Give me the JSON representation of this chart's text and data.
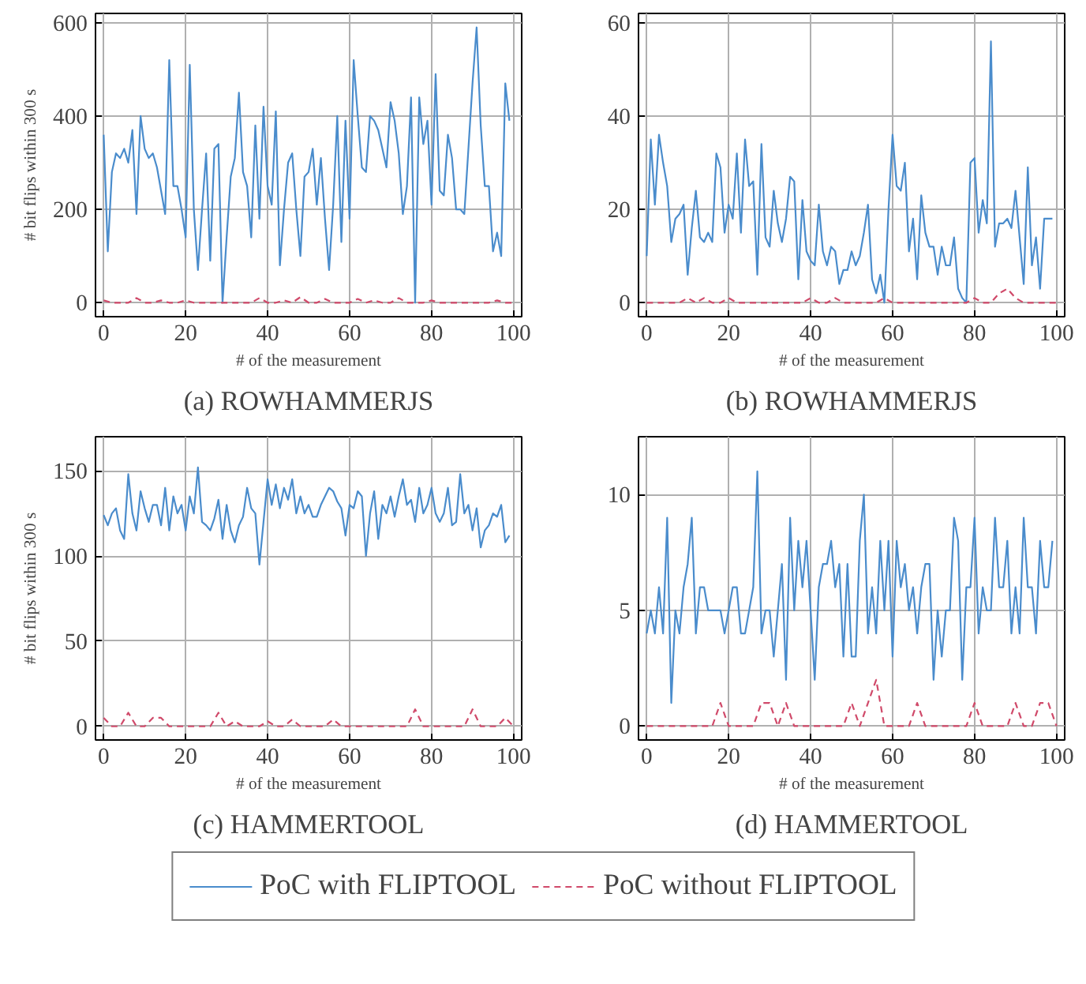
{
  "chart_data": [
    {
      "type": "line",
      "title": "(a) ROWHAMMERJS",
      "xlabel": "# of the measurement",
      "ylabel": "# bit flips within 300 s",
      "xlim": [
        -2,
        102
      ],
      "xticks": [
        0,
        20,
        40,
        60,
        80,
        100
      ],
      "ylim": [
        -30,
        620
      ],
      "yticks": [
        0,
        200,
        400,
        600
      ],
      "grid": true,
      "legend": "bottom",
      "series": [
        {
          "name": "PoC with FLIPTOOL",
          "color": "#4a8ccc",
          "line_style": "solid",
          "x": [
            0,
            1,
            2,
            3,
            4,
            5,
            6,
            7,
            8,
            9,
            10,
            11,
            12,
            13,
            14,
            15,
            16,
            17,
            18,
            19,
            20,
            21,
            22,
            23,
            24,
            25,
            26,
            27,
            28,
            29,
            30,
            31,
            32,
            33,
            34,
            35,
            36,
            37,
            38,
            39,
            40,
            41,
            42,
            43,
            44,
            45,
            46,
            47,
            48,
            49,
            50,
            51,
            52,
            53,
            54,
            55,
            56,
            57,
            58,
            59,
            60,
            61,
            62,
            63,
            64,
            65,
            66,
            67,
            68,
            69,
            70,
            71,
            72,
            73,
            74,
            75,
            76,
            77,
            78,
            79,
            80,
            81,
            82,
            83,
            84,
            85,
            86,
            87,
            88,
            89,
            90,
            91,
            92,
            93,
            94,
            95,
            96,
            97,
            98,
            99
          ],
          "values": [
            360,
            110,
            280,
            320,
            310,
            330,
            300,
            370,
            190,
            400,
            330,
            310,
            320,
            290,
            240,
            190,
            520,
            250,
            250,
            200,
            140,
            510,
            200,
            70,
            200,
            320,
            90,
            330,
            340,
            0,
            140,
            270,
            310,
            450,
            280,
            250,
            140,
            380,
            180,
            420,
            250,
            210,
            410,
            80,
            200,
            300,
            320,
            200,
            100,
            270,
            280,
            330,
            210,
            310,
            180,
            70,
            210,
            400,
            130,
            390,
            180,
            520,
            400,
            290,
            280,
            400,
            390,
            370,
            330,
            290,
            430,
            390,
            320,
            190,
            250,
            440,
            0,
            440,
            340,
            390,
            210,
            490,
            240,
            230,
            360,
            310,
            200,
            200,
            190,
            330,
            470,
            590,
            380,
            250,
            250,
            110,
            150,
            100,
            470,
            390
          ]
        },
        {
          "name": "PoC without FLIPTOOL",
          "color": "#d04a6a",
          "line_style": "dashed",
          "x": [
            0,
            2,
            4,
            6,
            8,
            10,
            12,
            14,
            16,
            18,
            20,
            22,
            24,
            26,
            28,
            30,
            32,
            34,
            36,
            38,
            40,
            42,
            44,
            46,
            48,
            50,
            52,
            54,
            56,
            58,
            60,
            62,
            64,
            66,
            68,
            70,
            72,
            74,
            76,
            78,
            80,
            82,
            84,
            86,
            88,
            90,
            92,
            94,
            96,
            98,
            100
          ],
          "values": [
            5,
            0,
            0,
            0,
            10,
            0,
            0,
            5,
            0,
            0,
            5,
            0,
            0,
            0,
            0,
            0,
            0,
            0,
            0,
            10,
            0,
            0,
            5,
            0,
            12,
            0,
            0,
            8,
            0,
            0,
            0,
            8,
            0,
            5,
            0,
            0,
            10,
            0,
            0,
            0,
            5,
            0,
            0,
            0,
            0,
            0,
            0,
            0,
            5,
            0,
            0
          ]
        }
      ]
    },
    {
      "type": "line",
      "title": "(b) ROWHAMMERJS",
      "xlabel": "# of the measurement",
      "xlim": [
        -2,
        102
      ],
      "xticks": [
        0,
        20,
        40,
        60,
        80,
        100
      ],
      "ylim": [
        -3,
        62
      ],
      "yticks": [
        0,
        20,
        40,
        60
      ],
      "grid": true,
      "series": [
        {
          "color": "#4a8ccc",
          "line_style": "solid",
          "x": [
            0,
            1,
            2,
            3,
            4,
            5,
            6,
            7,
            8,
            9,
            10,
            11,
            12,
            13,
            14,
            15,
            16,
            17,
            18,
            19,
            20,
            21,
            22,
            23,
            24,
            25,
            26,
            27,
            28,
            29,
            30,
            31,
            32,
            33,
            34,
            35,
            36,
            37,
            38,
            39,
            40,
            41,
            42,
            43,
            44,
            45,
            46,
            47,
            48,
            49,
            50,
            51,
            52,
            53,
            54,
            55,
            56,
            57,
            58,
            59,
            60,
            61,
            62,
            63,
            64,
            65,
            66,
            67,
            68,
            69,
            70,
            71,
            72,
            73,
            74,
            75,
            76,
            77,
            78,
            79,
            80,
            81,
            82,
            83,
            84,
            85,
            86,
            87,
            88,
            89,
            90,
            91,
            92,
            93,
            94,
            95,
            96,
            97,
            98,
            99
          ],
          "values": [
            10,
            35,
            21,
            36,
            30,
            25,
            13,
            18,
            19,
            21,
            6,
            16,
            24,
            14,
            13,
            15,
            13,
            32,
            29,
            15,
            21,
            18,
            32,
            15,
            35,
            25,
            26,
            6,
            34,
            14,
            12,
            24,
            17,
            13,
            18,
            27,
            26,
            5,
            22,
            11,
            9,
            8,
            21,
            11,
            8,
            12,
            11,
            4,
            7,
            7,
            11,
            8,
            10,
            15,
            21,
            5,
            2,
            6,
            0,
            20,
            36,
            25,
            24,
            30,
            11,
            18,
            5,
            23,
            15,
            12,
            12,
            6,
            12,
            8,
            8,
            14,
            3,
            1,
            0,
            30,
            31,
            15,
            22,
            17,
            56,
            12,
            17,
            17,
            18,
            16,
            24,
            14,
            4,
            29,
            8,
            14,
            3,
            18,
            18,
            18
          ]
        },
        {
          "color": "#d04a6a",
          "line_style": "dashed",
          "x": [
            0,
            2,
            4,
            6,
            8,
            10,
            12,
            14,
            16,
            18,
            20,
            22,
            24,
            26,
            28,
            30,
            32,
            34,
            36,
            38,
            40,
            42,
            44,
            46,
            48,
            50,
            52,
            54,
            56,
            58,
            60,
            62,
            64,
            66,
            68,
            70,
            72,
            74,
            76,
            78,
            80,
            82,
            84,
            86,
            88,
            90,
            92,
            94,
            96,
            98,
            100
          ],
          "values": [
            0,
            0,
            0,
            0,
            0,
            1,
            0,
            1,
            0,
            0,
            1,
            0,
            0,
            0,
            0,
            0,
            0,
            0,
            0,
            0,
            1,
            0,
            0,
            1,
            0,
            0,
            0,
            0,
            0,
            1,
            0,
            0,
            0,
            0,
            0,
            0,
            0,
            0,
            0,
            0,
            1,
            0,
            0,
            2,
            3,
            1,
            0,
            0,
            0,
            0,
            0
          ]
        }
      ]
    },
    {
      "type": "line",
      "title": "(c) HAMMERTOOL",
      "xlabel": "# of the measurement",
      "ylabel": "# bit flips within 300 s",
      "xlim": [
        -2,
        102
      ],
      "xticks": [
        0,
        20,
        40,
        60,
        80,
        100
      ],
      "ylim": [
        -8,
        170
      ],
      "yticks": [
        0,
        50,
        100,
        150
      ],
      "grid": true,
      "series": [
        {
          "color": "#4a8ccc",
          "line_style": "solid",
          "x": [
            0,
            1,
            2,
            3,
            4,
            5,
            6,
            7,
            8,
            9,
            10,
            11,
            12,
            13,
            14,
            15,
            16,
            17,
            18,
            19,
            20,
            21,
            22,
            23,
            24,
            25,
            26,
            27,
            28,
            29,
            30,
            31,
            32,
            33,
            34,
            35,
            36,
            37,
            38,
            39,
            40,
            41,
            42,
            43,
            44,
            45,
            46,
            47,
            48,
            49,
            50,
            51,
            52,
            53,
            54,
            55,
            56,
            57,
            58,
            59,
            60,
            61,
            62,
            63,
            64,
            65,
            66,
            67,
            68,
            69,
            70,
            71,
            72,
            73,
            74,
            75,
            76,
            77,
            78,
            79,
            80,
            81,
            82,
            83,
            84,
            85,
            86,
            87,
            88,
            89,
            90,
            91,
            92,
            93,
            94,
            95,
            96,
            97,
            98,
            99
          ],
          "values": [
            124,
            118,
            125,
            128,
            115,
            110,
            148,
            125,
            115,
            138,
            128,
            120,
            130,
            130,
            118,
            140,
            115,
            135,
            125,
            130,
            115,
            135,
            125,
            152,
            120,
            118,
            115,
            122,
            133,
            110,
            130,
            115,
            108,
            118,
            123,
            140,
            128,
            125,
            95,
            120,
            145,
            130,
            142,
            128,
            140,
            133,
            145,
            125,
            135,
            125,
            130,
            123,
            123,
            130,
            135,
            140,
            138,
            132,
            128,
            112,
            130,
            128,
            138,
            135,
            100,
            125,
            138,
            110,
            130,
            125,
            135,
            123,
            135,
            145,
            130,
            133,
            120,
            140,
            125,
            130,
            140,
            125,
            120,
            125,
            140,
            118,
            120,
            148,
            125,
            130,
            115,
            128,
            105,
            115,
            118,
            125,
            123,
            130,
            108,
            112
          ]
        },
        {
          "color": "#d04a6a",
          "line_style": "dashed",
          "x": [
            0,
            2,
            4,
            6,
            8,
            10,
            12,
            14,
            16,
            18,
            20,
            22,
            24,
            26,
            28,
            30,
            32,
            34,
            36,
            38,
            40,
            42,
            44,
            46,
            48,
            50,
            52,
            54,
            56,
            58,
            60,
            62,
            64,
            66,
            68,
            70,
            72,
            74,
            76,
            78,
            80,
            82,
            84,
            86,
            88,
            90,
            92,
            94,
            96,
            98,
            100
          ],
          "values": [
            5,
            0,
            0,
            8,
            0,
            0,
            5,
            5,
            0,
            0,
            0,
            0,
            0,
            0,
            8,
            0,
            3,
            0,
            0,
            0,
            3,
            0,
            0,
            4,
            0,
            0,
            0,
            0,
            4,
            0,
            0,
            0,
            0,
            0,
            0,
            0,
            0,
            0,
            10,
            0,
            0,
            0,
            0,
            0,
            0,
            10,
            0,
            0,
            0,
            5,
            0
          ]
        }
      ]
    },
    {
      "type": "line",
      "title": "(d) HAMMERTOOL",
      "xlabel": "# of the measurement",
      "xlim": [
        -2,
        102
      ],
      "xticks": [
        0,
        20,
        40,
        60,
        80,
        100
      ],
      "ylim": [
        -0.6,
        12.5
      ],
      "yticks": [
        0,
        5,
        10
      ],
      "grid": true,
      "series": [
        {
          "color": "#4a8ccc",
          "line_style": "solid",
          "x": [
            0,
            1,
            2,
            3,
            4,
            5,
            6,
            7,
            8,
            9,
            10,
            11,
            12,
            13,
            14,
            15,
            16,
            17,
            18,
            19,
            20,
            21,
            22,
            23,
            24,
            25,
            26,
            27,
            28,
            29,
            30,
            31,
            32,
            33,
            34,
            35,
            36,
            37,
            38,
            39,
            40,
            41,
            42,
            43,
            44,
            45,
            46,
            47,
            48,
            49,
            50,
            51,
            52,
            53,
            54,
            55,
            56,
            57,
            58,
            59,
            60,
            61,
            62,
            63,
            64,
            65,
            66,
            67,
            68,
            69,
            70,
            71,
            72,
            73,
            74,
            75,
            76,
            77,
            78,
            79,
            80,
            81,
            82,
            83,
            84,
            85,
            86,
            87,
            88,
            89,
            90,
            91,
            92,
            93,
            94,
            95,
            96,
            97,
            98,
            99
          ],
          "values": [
            4,
            5,
            4,
            6,
            4,
            9,
            1,
            5,
            4,
            6,
            7,
            9,
            4,
            6,
            6,
            5,
            5,
            5,
            5,
            4,
            5,
            6,
            6,
            4,
            4,
            5,
            6,
            11,
            4,
            5,
            5,
            3,
            5,
            7,
            2,
            9,
            5,
            8,
            6,
            8,
            5,
            2,
            6,
            7,
            7,
            8,
            6,
            7,
            3,
            7,
            3,
            3,
            8,
            10,
            4,
            6,
            4,
            8,
            5,
            8,
            3,
            8,
            6,
            7,
            5,
            6,
            4,
            6,
            7,
            7,
            2,
            5,
            3,
            5,
            5,
            9,
            8,
            2,
            6,
            6,
            9,
            4,
            6,
            5,
            5,
            9,
            6,
            6,
            8,
            4,
            6,
            4,
            9,
            6,
            6,
            4,
            8,
            6,
            6,
            8
          ]
        },
        {
          "color": "#d04a6a",
          "line_style": "dashed",
          "x": [
            0,
            2,
            4,
            6,
            8,
            10,
            12,
            14,
            16,
            18,
            20,
            22,
            24,
            26,
            28,
            30,
            32,
            34,
            36,
            38,
            40,
            42,
            44,
            46,
            48,
            50,
            52,
            54,
            56,
            58,
            60,
            62,
            64,
            66,
            68,
            70,
            72,
            74,
            76,
            78,
            80,
            82,
            84,
            86,
            88,
            90,
            92,
            94,
            96,
            98,
            100
          ],
          "values": [
            0,
            0,
            0,
            0,
            0,
            0,
            0,
            0,
            0,
            1,
            0,
            0,
            0,
            0,
            1,
            1,
            0,
            1,
            0,
            0,
            0,
            0,
            0,
            0,
            0,
            1,
            0,
            1,
            2,
            0,
            0,
            0,
            0,
            1,
            0,
            0,
            0,
            0,
            0,
            0,
            1,
            0,
            0,
            0,
            0,
            1,
            0,
            0,
            1,
            1,
            0
          ]
        }
      ]
    }
  ]
}
